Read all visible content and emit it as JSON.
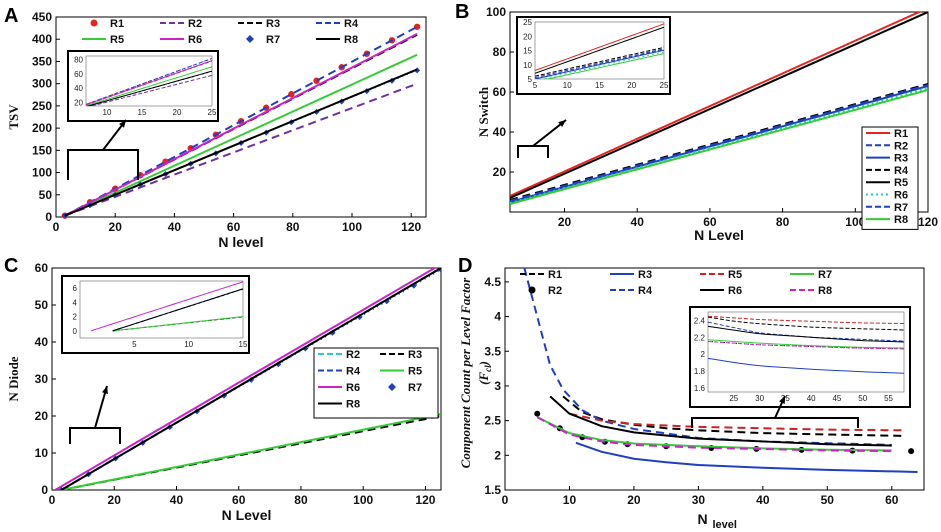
{
  "chart_data": [
    {
      "panel": "A",
      "type": "line",
      "xlabel": "N level",
      "ylabel": "TSV",
      "xlim": [
        0,
        125
      ],
      "ylim": [
        0,
        450
      ],
      "xticks": [
        0,
        20,
        40,
        60,
        80,
        100,
        120
      ],
      "yticks": [
        0,
        50,
        100,
        150,
        200,
        250,
        300,
        350,
        400,
        450
      ],
      "series": [
        {
          "name": "R1",
          "style": "dots",
          "color": "#e8231e",
          "x": [
            3,
            122
          ],
          "y": [
            3,
            428
          ]
        },
        {
          "name": "R2",
          "style": "dashed",
          "color": "#7030a0",
          "x": [
            3,
            122
          ],
          "y": [
            3,
            300
          ]
        },
        {
          "name": "R3",
          "style": "dashed",
          "color": "#000000",
          "x": [
            3,
            122
          ],
          "y": [
            3,
            410
          ]
        },
        {
          "name": "R4",
          "style": "dashed",
          "color": "#1f3fc0",
          "x": [
            3,
            122
          ],
          "y": [
            3,
            428
          ]
        },
        {
          "name": "R5",
          "style": "solid",
          "color": "#33cc33",
          "x": [
            3,
            122
          ],
          "y": [
            3,
            365
          ]
        },
        {
          "name": "R6",
          "style": "solid",
          "color": "#cc22cc",
          "x": [
            3,
            122
          ],
          "y": [
            3,
            412
          ]
        },
        {
          "name": "R7",
          "style": "markers",
          "color": "#1f3fc0",
          "x": [
            3,
            122
          ],
          "y": [
            3,
            330
          ]
        },
        {
          "name": "R8",
          "style": "solid",
          "color": "#000000",
          "x": [
            3,
            122
          ],
          "y": [
            3,
            332
          ]
        }
      ],
      "inset": {
        "xlim": [
          7,
          25
        ],
        "ylim": [
          15,
          85
        ],
        "xticks": [
          10,
          15,
          20,
          25
        ],
        "yticks": [
          20,
          40,
          60,
          80
        ]
      }
    },
    {
      "panel": "B",
      "type": "line",
      "xlabel": "N Level",
      "ylabel": "N Switch",
      "xlim": [
        5,
        120
      ],
      "ylim": [
        0,
        100
      ],
      "xticks": [
        20,
        40,
        60,
        80,
        100,
        120
      ],
      "yticks": [
        20,
        40,
        60,
        80,
        100
      ],
      "series": [
        {
          "name": "R1",
          "style": "solid",
          "color": "#e8231e",
          "x": [
            5,
            120
          ],
          "y": [
            8,
            102
          ]
        },
        {
          "name": "R2",
          "style": "dashed",
          "color": "#1f3fc0",
          "x": [
            5,
            120
          ],
          "y": [
            5,
            64
          ]
        },
        {
          "name": "R3",
          "style": "solid",
          "color": "#1f3fc0",
          "x": [
            5,
            120
          ],
          "y": [
            5,
            63
          ]
        },
        {
          "name": "R4",
          "style": "dashed",
          "color": "#000000",
          "x": [
            5,
            120
          ],
          "y": [
            6,
            64
          ]
        },
        {
          "name": "R5",
          "style": "solid",
          "color": "#000000",
          "x": [
            5,
            120
          ],
          "y": [
            7,
            100
          ]
        },
        {
          "name": "R6",
          "style": "dotted",
          "color": "#22cccc",
          "x": [
            5,
            120
          ],
          "y": [
            4.5,
            62
          ]
        },
        {
          "name": "R7",
          "style": "dashed",
          "color": "#1f3fc0",
          "x": [
            5,
            120
          ],
          "y": [
            5.5,
            63.5
          ]
        },
        {
          "name": "R8",
          "style": "solid",
          "color": "#33cc33",
          "x": [
            5,
            120
          ],
          "y": [
            4,
            61
          ]
        }
      ],
      "inset": {
        "xlim": [
          5,
          25
        ],
        "ylim": [
          5,
          25
        ],
        "xticks": [
          5,
          10,
          15,
          20,
          25
        ],
        "yticks": [
          5,
          10,
          15,
          20,
          25
        ]
      }
    },
    {
      "panel": "C",
      "type": "line",
      "xlabel": "N Level",
      "ylabel": "N Diode",
      "xlim": [
        0,
        125
      ],
      "ylim": [
        0,
        60
      ],
      "xticks": [
        0,
        20,
        40,
        60,
        80,
        100,
        120
      ],
      "yticks": [
        0,
        10,
        20,
        30,
        40,
        50,
        60
      ],
      "series": [
        {
          "name": "R2",
          "style": "dashed",
          "color": "#22cccc",
          "x": [
            3,
            125
          ],
          "y": [
            0,
            60
          ]
        },
        {
          "name": "R3",
          "style": "dashed",
          "color": "#000000",
          "x": [
            3,
            125
          ],
          "y": [
            0,
            20
          ]
        },
        {
          "name": "R4",
          "style": "dashed",
          "color": "#1f3fc0",
          "x": [
            3,
            125
          ],
          "y": [
            0,
            60
          ]
        },
        {
          "name": "R5",
          "style": "solid",
          "color": "#33cc33",
          "x": [
            3,
            125
          ],
          "y": [
            0,
            20.5
          ]
        },
        {
          "name": "R6",
          "style": "solid",
          "color": "#cc22cc",
          "x": [
            1,
            125
          ],
          "y": [
            0,
            61
          ]
        },
        {
          "name": "R7",
          "style": "markers",
          "color": "#1f3fc0",
          "x": [
            3,
            125
          ],
          "y": [
            0,
            59.5
          ]
        },
        {
          "name": "R8",
          "style": "solid",
          "color": "#000000",
          "x": [
            3,
            125
          ],
          "y": [
            0,
            60
          ]
        }
      ],
      "inset": {
        "xlim": [
          0,
          15
        ],
        "ylim": [
          -1,
          7
        ],
        "xticks": [
          5,
          10,
          15
        ],
        "yticks": [
          0,
          2,
          4,
          6
        ]
      }
    },
    {
      "panel": "D",
      "type": "line",
      "xlabel": "N level",
      "ylabel": "Component Count per Level Factor (Fcl)",
      "xlim": [
        0,
        65
      ],
      "ylim": [
        1.5,
        4.7
      ],
      "xticks": [
        0,
        10,
        20,
        30,
        40,
        50,
        60
      ],
      "yticks": [
        1.5,
        2,
        2.5,
        3,
        3.5,
        4,
        4.5
      ],
      "series": [
        {
          "name": "R1",
          "style": "dashed",
          "color": "#000000",
          "x": [
            9,
            12,
            15,
            20,
            25,
            30,
            40,
            50,
            62
          ],
          "y": [
            2.85,
            2.62,
            2.52,
            2.44,
            2.39,
            2.36,
            2.32,
            2.3,
            2.28
          ]
        },
        {
          "name": "R2",
          "style": "dots",
          "color": "#000000",
          "x": [
            5,
            10,
            15,
            20,
            30,
            40,
            50,
            63
          ],
          "y": [
            2.6,
            2.3,
            2.2,
            2.15,
            2.11,
            2.09,
            2.07,
            2.06
          ]
        },
        {
          "name": "R3",
          "style": "solid",
          "color": "#1f3fc0",
          "x": [
            11,
            15,
            20,
            25,
            30,
            40,
            50,
            64
          ],
          "y": [
            2.18,
            2.05,
            1.95,
            1.9,
            1.86,
            1.82,
            1.79,
            1.76
          ]
        },
        {
          "name": "R4",
          "style": "dashed",
          "color": "#1f3fc0",
          "x": [
            3,
            5,
            7,
            9,
            12,
            15,
            20,
            30,
            40,
            60
          ],
          "y": [
            4.7,
            4.0,
            3.3,
            2.95,
            2.65,
            2.5,
            2.38,
            2.25,
            2.2,
            2.15
          ]
        },
        {
          "name": "R5",
          "style": "dashed",
          "color": "#cc2222",
          "x": [
            10,
            15,
            20,
            30,
            40,
            50,
            62
          ],
          "y": [
            2.6,
            2.5,
            2.45,
            2.41,
            2.39,
            2.37,
            2.36
          ]
        },
        {
          "name": "R6",
          "style": "solid",
          "color": "#000000",
          "x": [
            7,
            10,
            15,
            20,
            30,
            40,
            50,
            60
          ],
          "y": [
            2.85,
            2.6,
            2.42,
            2.33,
            2.24,
            2.2,
            2.16,
            2.14
          ]
        },
        {
          "name": "R7",
          "style": "solid",
          "color": "#33cc33",
          "x": [
            5,
            10,
            15,
            20,
            30,
            40,
            50,
            60
          ],
          "y": [
            2.55,
            2.32,
            2.22,
            2.17,
            2.13,
            2.1,
            2.08,
            2.07
          ]
        },
        {
          "name": "R8",
          "style": "dashed",
          "color": "#cc22cc",
          "x": [
            5,
            10,
            15,
            20,
            30,
            40,
            50,
            60
          ],
          "y": [
            2.55,
            2.3,
            2.2,
            2.15,
            2.11,
            2.09,
            2.07,
            2.06
          ]
        }
      ],
      "inset": {
        "xlim": [
          20,
          58
        ],
        "ylim": [
          1.55,
          2.5
        ],
        "xticks": [
          25,
          30,
          35,
          40,
          45,
          50,
          55
        ],
        "yticks": [
          1.6,
          1.8,
          2,
          2.2,
          2.4
        ]
      }
    }
  ],
  "labels": {
    "panel_a": "A",
    "panel_b": "B",
    "panel_c": "C",
    "panel_d": "D",
    "ylabel_d_line1": "Component Count per Level Factor",
    "ylabel_d_line2": "(F",
    "ylabel_d_sub": "cl",
    "ylabel_d_close": ")",
    "xlabel_d_main": "N",
    "xlabel_d_sub": "level"
  }
}
